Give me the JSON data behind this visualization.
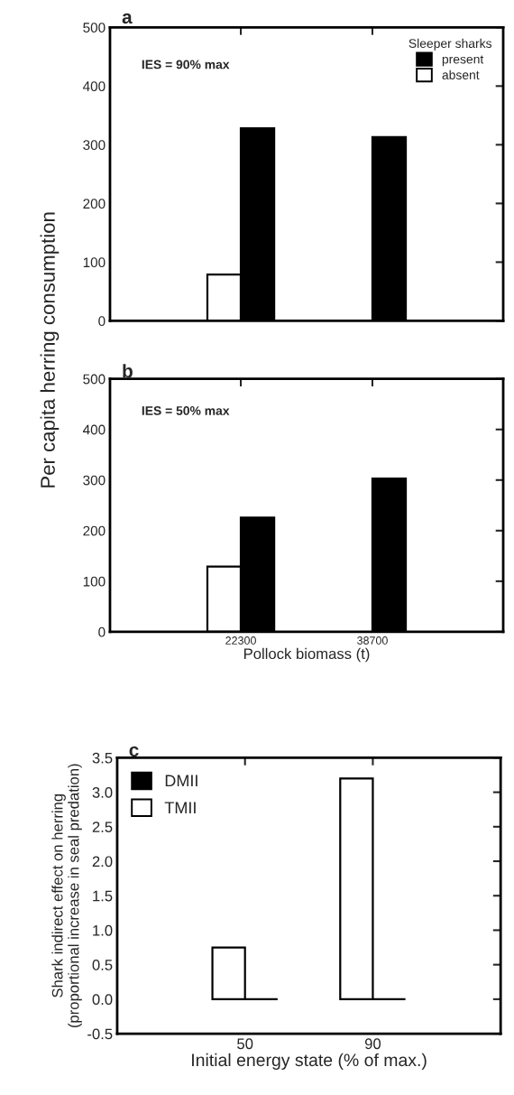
{
  "chart_data": [
    {
      "type": "bar",
      "title": "a",
      "x": [
        22300,
        38700
      ],
      "xlim": [
        6000,
        55000
      ],
      "xticks": [
        22300,
        38700
      ],
      "ylim": [
        0,
        500
      ],
      "yticks": [
        0,
        100,
        200,
        300,
        400,
        500
      ],
      "ylabel": "Per capita herring consumption",
      "tick_labels": "y",
      "legend": "top right",
      "legend_title": "Sleeper sharks",
      "annotations": [
        "IES = 90% max"
      ],
      "series": [
        {
          "name": "absent",
          "color": "#ffffff",
          "values": [
            79,
            null
          ]
        },
        {
          "name": "present",
          "color": "#000000",
          "values": [
            328,
            313
          ]
        }
      ]
    },
    {
      "type": "bar",
      "title": "b",
      "x": [
        22300,
        38700
      ],
      "xlim": [
        6000,
        55000
      ],
      "xticks": [
        22300,
        38700
      ],
      "ylim": [
        0,
        500
      ],
      "yticks": [
        0,
        100,
        200,
        300,
        400,
        500
      ],
      "xlabel": "Pollock biomass (t)",
      "annotations": [
        "IES = 50% max"
      ],
      "series": [
        {
          "color": "#ffffff",
          "values": [
            129,
            null
          ]
        },
        {
          "color": "#000000",
          "values": [
            226,
            303
          ]
        }
      ]
    },
    {
      "type": "bar",
      "title": "c",
      "x": [
        50,
        90
      ],
      "xlim": [
        10,
        130
      ],
      "xticks": [
        50,
        90
      ],
      "ylim": [
        -0.5,
        3.5
      ],
      "yticks": [
        {
          "value": -0.5,
          "label": "-0.5"
        },
        {
          "value": 0,
          "label": "0.0"
        },
        {
          "value": 0.5,
          "label": "0.5"
        },
        {
          "value": 1,
          "label": "1.0"
        },
        {
          "value": 1.5,
          "label": "1.5"
        },
        {
          "value": 2,
          "label": "2.0"
        },
        {
          "value": 2.5,
          "label": "2.5"
        },
        {
          "value": 3,
          "label": "3.0"
        },
        {
          "value": 3.5,
          "label": "3.5"
        }
      ],
      "xlabel": "Initial energy state (% of max.)",
      "ylabel": "Shark indirect effect on herring\n(proportional increase in seal predation)",
      "legend": "top left",
      "series": [
        {
          "name": "TMII",
          "color": "#ffffff",
          "values": [
            0.75,
            3.2
          ]
        },
        {
          "name": "DMII",
          "color": "#000000",
          "values": [
            0,
            0
          ]
        }
      ]
    }
  ]
}
